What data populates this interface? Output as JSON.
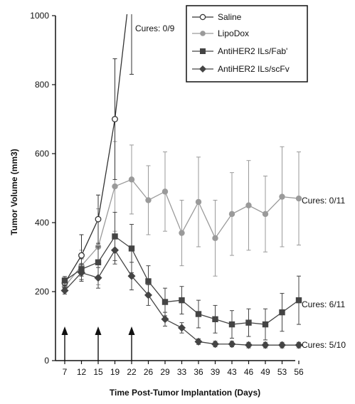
{
  "chart_data": {
    "type": "line",
    "xlabel": "Time Post-Tumor Implantation (Days)",
    "ylabel": "Tumor Volume (mm3)",
    "ylim": [
      0,
      1000
    ],
    "yticks": [
      0,
      200,
      400,
      600,
      800,
      1000
    ],
    "x": [
      7,
      12,
      15,
      19,
      22,
      26,
      29,
      33,
      36,
      39,
      43,
      46,
      49,
      53,
      56
    ],
    "legend_position": "top-right",
    "series": [
      {
        "name": "Saline",
        "color": "#333333",
        "marker": "open-circle",
        "x": [
          7,
          12,
          15,
          19,
          22
        ],
        "values": [
          225,
          305,
          410,
          700,
          1120
        ],
        "errors": [
          15,
          60,
          70,
          175,
          290
        ]
      },
      {
        "name": "LipoDox",
        "color": "#9a9a9a",
        "marker": "filled-circle",
        "x": [
          7,
          12,
          15,
          19,
          22,
          26,
          29,
          33,
          36,
          39,
          43,
          46,
          49,
          53,
          56
        ],
        "values": [
          215,
          275,
          330,
          505,
          525,
          465,
          490,
          370,
          460,
          355,
          425,
          450,
          425,
          475,
          470
        ],
        "errors": [
          15,
          45,
          110,
          130,
          100,
          100,
          115,
          95,
          130,
          110,
          120,
          130,
          110,
          145,
          135
        ]
      },
      {
        "name": "AntiHER2 ILs/Fab'",
        "color": "#444444",
        "marker": "filled-square",
        "x": [
          7,
          12,
          15,
          19,
          22,
          26,
          29,
          33,
          36,
          39,
          43,
          46,
          49,
          53,
          56
        ],
        "values": [
          232,
          265,
          285,
          360,
          325,
          230,
          170,
          175,
          135,
          120,
          105,
          110,
          105,
          140,
          175
        ],
        "errors": [
          12,
          30,
          45,
          70,
          70,
          45,
          40,
          40,
          40,
          40,
          40,
          40,
          45,
          55,
          70
        ]
      },
      {
        "name": "AntiHER2 ILs/scFv",
        "color": "#444444",
        "marker": "filled-diamond",
        "x": [
          7,
          12,
          15,
          19,
          22,
          26,
          29,
          33,
          36,
          39,
          43,
          46,
          49,
          53,
          56
        ],
        "values": [
          203,
          255,
          240,
          320,
          245,
          190,
          120,
          95,
          55,
          48,
          48,
          45,
          45,
          45,
          45
        ],
        "errors": [
          10,
          25,
          30,
          40,
          40,
          30,
          20,
          15,
          8,
          8,
          8,
          8,
          8,
          8,
          8
        ]
      }
    ],
    "annotations": [
      {
        "text": "Cures: 0/9",
        "series": "Saline"
      },
      {
        "text": "Cures: 0/11",
        "series": "LipoDox"
      },
      {
        "text": "Cures: 6/11",
        "series": "AntiHER2 ILs/Fab'"
      },
      {
        "text": "Cures: 5/10",
        "series": "AntiHER2 ILs/scFv"
      }
    ],
    "treatment_days": [
      7,
      15,
      22
    ]
  }
}
